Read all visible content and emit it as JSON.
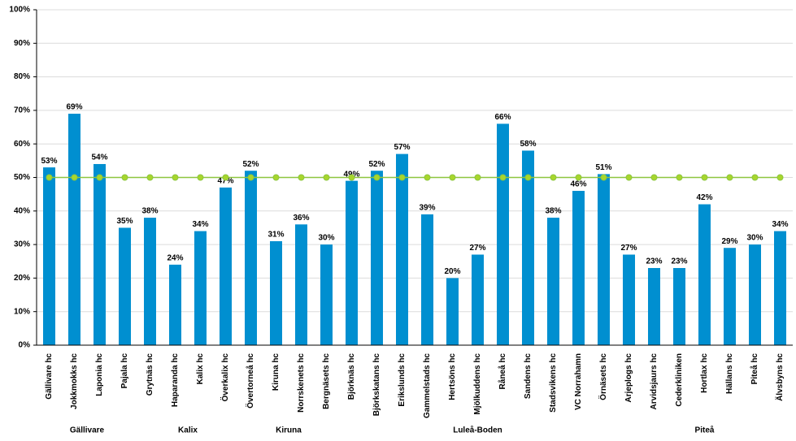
{
  "chart_data": {
    "type": "bar",
    "color": "#008fd0",
    "ylim": [
      0,
      100
    ],
    "yticks": [
      {
        "value": 0,
        "label": "0%"
      },
      {
        "value": 10,
        "label": "10%"
      },
      {
        "value": 20,
        "label": "20%"
      },
      {
        "value": 30,
        "label": "30%"
      },
      {
        "value": 40,
        "label": "40%"
      },
      {
        "value": 50,
        "label": "50%"
      },
      {
        "value": 60,
        "label": "60%"
      },
      {
        "value": 70,
        "label": "70%"
      },
      {
        "value": 80,
        "label": "80%"
      },
      {
        "value": 90,
        "label": "90%"
      },
      {
        "value": 100,
        "label": "100%"
      }
    ],
    "grid": true,
    "reference_line": {
      "value": 50,
      "color": "#8dc63f"
    },
    "groups": [
      {
        "name": "Gällivare",
        "categories": [
          "Gällivare hc",
          "Jokkmokks hc",
          "Laponia hc",
          "Pajala hc"
        ],
        "values": [
          53,
          69,
          54,
          35
        ],
        "value_labels": [
          "53%",
          "69%",
          "54%",
          "35%"
        ]
      },
      {
        "name": "Kalix",
        "categories": [
          "Grytnäs hc",
          "Haparanda hc",
          "Kalix hc",
          "Överkalix hc"
        ],
        "values": [
          38,
          24,
          34,
          47
        ],
        "value_labels": [
          "38%",
          "24%",
          "34%",
          "47%"
        ]
      },
      {
        "name": "Kiruna",
        "categories": [
          "Övertorneå hc",
          "Kiruna hc",
          "Norrskenets hc",
          "Bergnäsets hc"
        ],
        "values": [
          52,
          31,
          36,
          30
        ],
        "value_labels": [
          "52%",
          "31%",
          "36%",
          "30%"
        ]
      },
      {
        "name": "Luleå-Boden",
        "categories": [
          "Björknäs hc",
          "Björkskatans hc",
          "Erikslunds hc",
          "Gammelstads hc",
          "Hertsöns hc",
          "Mjölkuddens hc",
          "Råneå hc",
          "Sandens hc",
          "Stadsvikens hc",
          "VC Norrahamn",
          "Örnäsets hc"
        ],
        "values": [
          49,
          52,
          57,
          39,
          20,
          27,
          66,
          58,
          38,
          46,
          51
        ],
        "value_labels": [
          "49%",
          "52%",
          "57%",
          "39%",
          "20%",
          "27%",
          "66%",
          "58%",
          "38%",
          "46%",
          "51%"
        ]
      },
      {
        "name": "Piteå",
        "categories": [
          "Arjeplogs hc",
          "Arvidsjaurs hc",
          "Cederkliniken",
          "Hortlax hc",
          "Hällans hc",
          "Piteå hc",
          "Älvsbyns hc"
        ],
        "values": [
          27,
          23,
          23,
          42,
          29,
          30,
          34
        ],
        "value_labels": [
          "27%",
          "23%",
          "23%",
          "42%",
          "29%",
          "30%",
          "34%"
        ]
      }
    ]
  }
}
